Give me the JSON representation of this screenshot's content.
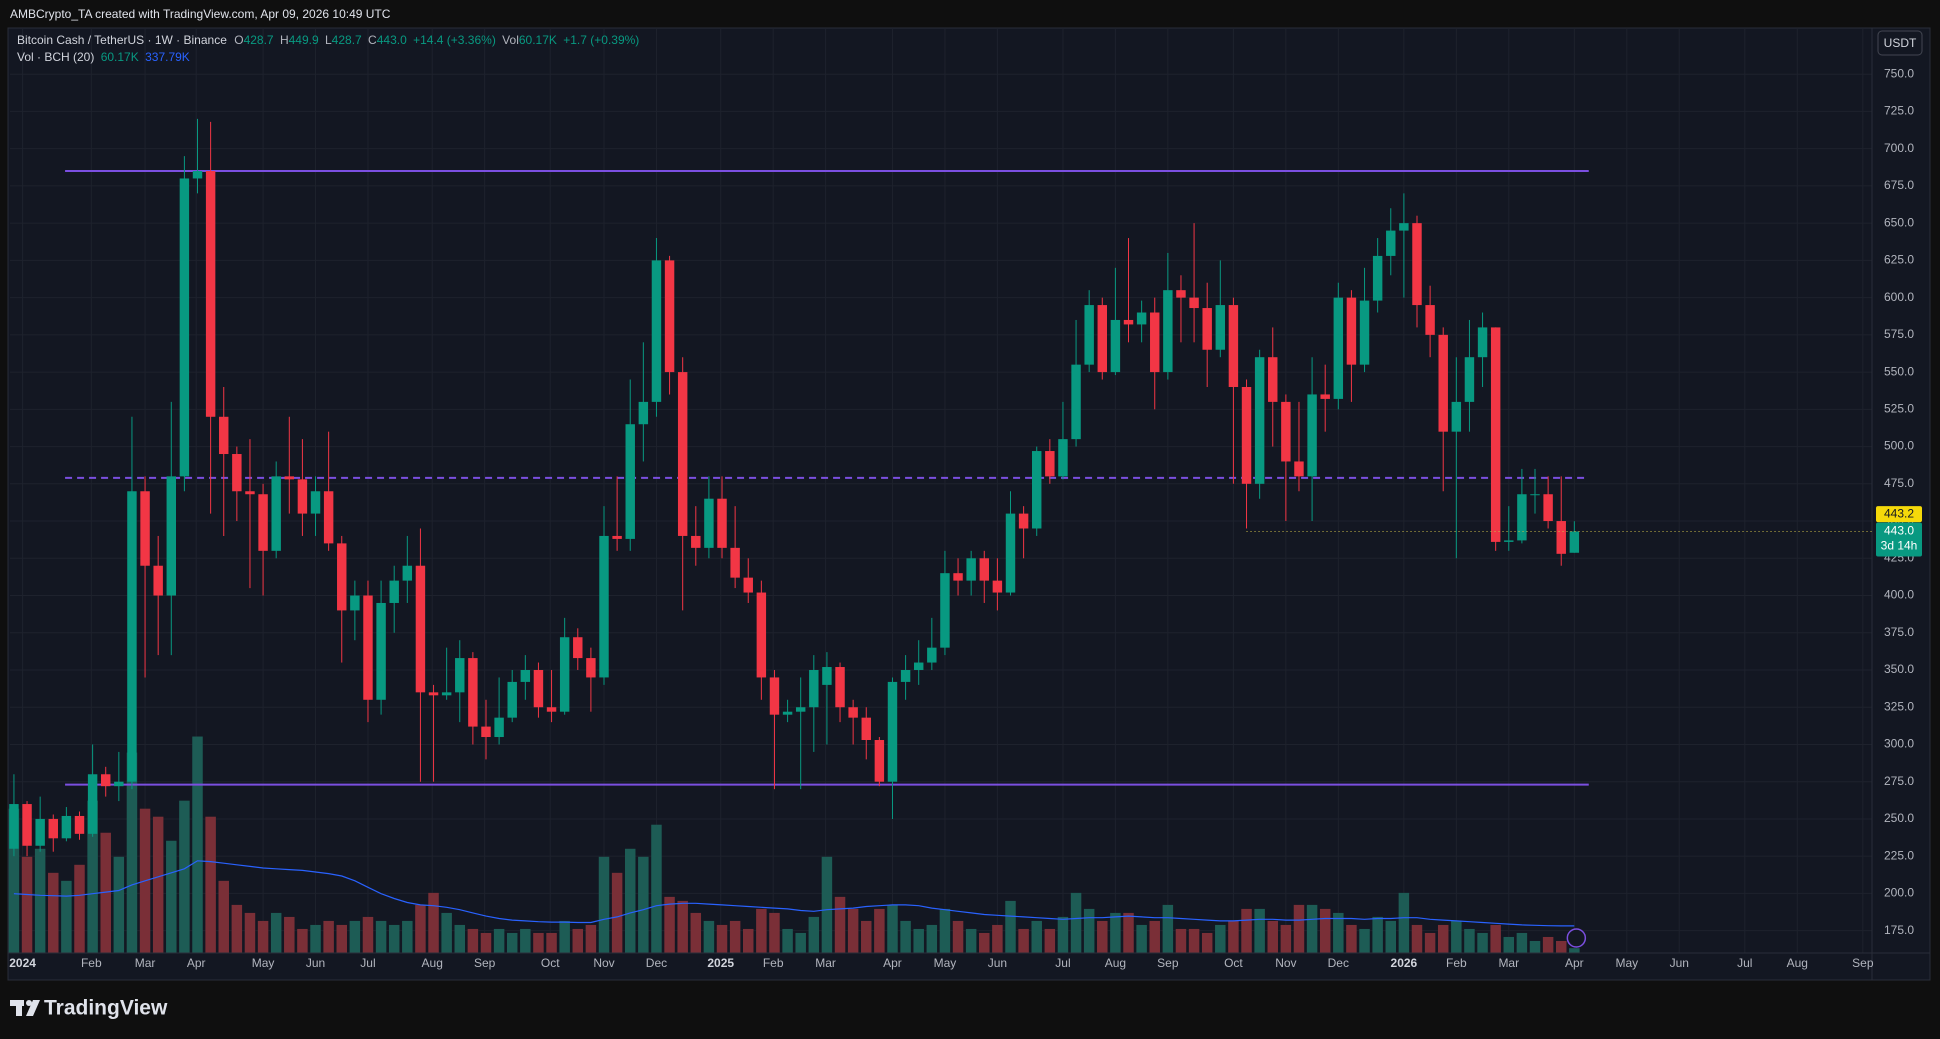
{
  "header": {
    "text": "AMBCrypto_TA created with TradingView.com, Apr 09, 2026 10:49 UTC"
  },
  "legend": {
    "symbol": "Bitcoin Cash / TetherUS · 1W · Binance",
    "o_label": "O",
    "o": "428.7",
    "h_label": "H",
    "h": "449.9",
    "l_label": "L",
    "l": "428.7",
    "c_label": "C",
    "c": "443.0",
    "change": "+14.4 (+3.36%)",
    "vol_label": "Vol",
    "vol": "60.17K",
    "vol_change": "+1.7 (+0.39%)",
    "indicator": "Vol · BCH (20)",
    "ind_vol": "60.17K",
    "ind_ma": "337.79K"
  },
  "currency": "USDT",
  "footer": "TradingView",
  "chart_data": {
    "type": "candlestick",
    "open": [
      230,
      260,
      232,
      250,
      237,
      252,
      240,
      280,
      272,
      275,
      470,
      420,
      400,
      480,
      680,
      685,
      520,
      495,
      470,
      468,
      430,
      480,
      478,
      455,
      470,
      435,
      390,
      400,
      330,
      395,
      410,
      420,
      335,
      333,
      335,
      358,
      312,
      305,
      318,
      342,
      350,
      325,
      322,
      372,
      358,
      345,
      440,
      438,
      515,
      530,
      625,
      550,
      440,
      432,
      465,
      432,
      412,
      402,
      345,
      320,
      322,
      325,
      340,
      352,
      325,
      318,
      303,
      275,
      342,
      350,
      355,
      365,
      415,
      410,
      425,
      410,
      402,
      455,
      445,
      497,
      480,
      505,
      555,
      595,
      550,
      585,
      582,
      590,
      550,
      605,
      600,
      593,
      565,
      595,
      540,
      475,
      560,
      530,
      490,
      480,
      535,
      532,
      600,
      555,
      598,
      628,
      645,
      650,
      595,
      575,
      510,
      530,
      560,
      580,
      436,
      437,
      468,
      468,
      450,
      428.7
    ],
    "high": [
      280,
      262,
      265,
      253,
      258,
      255,
      300,
      285,
      295,
      520,
      480,
      440,
      530,
      695,
      720,
      718,
      540,
      500,
      505,
      475,
      490,
      520,
      505,
      480,
      510,
      440,
      410,
      410,
      410,
      420,
      440,
      445,
      340,
      365,
      370,
      362,
      330,
      345,
      350,
      360,
      355,
      350,
      385,
      378,
      365,
      460,
      480,
      545,
      570,
      640,
      628,
      560,
      460,
      480,
      480,
      460,
      425,
      410,
      350,
      330,
      345,
      360,
      362,
      355,
      330,
      325,
      305,
      345,
      360,
      370,
      385,
      430,
      425,
      430,
      430,
      425,
      470,
      460,
      500,
      505,
      530,
      585,
      605,
      600,
      620,
      640,
      598,
      600,
      630,
      615,
      650,
      610,
      625,
      600,
      545,
      565,
      580,
      535,
      530,
      560,
      555,
      610,
      605,
      620,
      640,
      660,
      670,
      655,
      608,
      580,
      560,
      585,
      590,
      580,
      460,
      485,
      485,
      480,
      480,
      449.9
    ],
    "low": [
      225,
      225,
      228,
      228,
      235,
      236,
      238,
      265,
      262,
      270,
      345,
      360,
      360,
      470,
      670,
      455,
      440,
      450,
      405,
      400,
      425,
      455,
      440,
      440,
      430,
      355,
      370,
      315,
      320,
      375,
      395,
      275,
      275,
      330,
      315,
      300,
      290,
      300,
      315,
      330,
      318,
      315,
      320,
      350,
      322,
      340,
      430,
      430,
      490,
      520,
      535,
      390,
      420,
      425,
      425,
      405,
      395,
      330,
      270,
      315,
      270,
      295,
      300,
      315,
      300,
      290,
      272,
      250,
      330,
      340,
      350,
      360,
      400,
      400,
      395,
      390,
      400,
      425,
      440,
      475,
      478,
      500,
      550,
      545,
      548,
      570,
      570,
      525,
      545,
      570,
      570,
      540,
      560,
      475,
      445,
      465,
      500,
      450,
      470,
      450,
      510,
      525,
      530,
      550,
      590,
      615,
      600,
      580,
      560,
      470,
      425,
      510,
      540,
      430,
      430,
      435,
      455,
      445,
      420,
      428.7
    ],
    "close": [
      260,
      232,
      250,
      237,
      252,
      240,
      280,
      272,
      275,
      470,
      420,
      400,
      480,
      680,
      685,
      520,
      495,
      470,
      468,
      430,
      480,
      478,
      455,
      470,
      435,
      390,
      400,
      330,
      395,
      410,
      420,
      335,
      333,
      335,
      358,
      312,
      305,
      318,
      342,
      350,
      325,
      322,
      372,
      358,
      345,
      440,
      438,
      515,
      530,
      625,
      550,
      440,
      432,
      465,
      432,
      412,
      402,
      345,
      320,
      322,
      325,
      350,
      352,
      325,
      318,
      303,
      275,
      342,
      350,
      355,
      365,
      415,
      410,
      425,
      410,
      402,
      455,
      445,
      497,
      480,
      505,
      555,
      595,
      550,
      585,
      582,
      590,
      550,
      605,
      600,
      593,
      565,
      595,
      540,
      475,
      560,
      530,
      490,
      480,
      535,
      532,
      600,
      555,
      598,
      628,
      645,
      650,
      595,
      575,
      510,
      530,
      560,
      580,
      436,
      437,
      468,
      468,
      450,
      428,
      443.0
    ],
    "volume": [
      1800,
      1200,
      1300,
      1000,
      900,
      1100,
      1900,
      1500,
      1200,
      2500,
      1800,
      1700,
      1400,
      1900,
      2700,
      1700,
      900,
      600,
      500,
      400,
      500,
      450,
      300,
      350,
      400,
      350,
      400,
      450,
      400,
      350,
      400,
      600,
      750,
      500,
      350,
      300,
      250,
      300,
      250,
      300,
      250,
      250,
      400,
      300,
      350,
      1200,
      1000,
      1300,
      1200,
      1600,
      700,
      650,
      500,
      400,
      350,
      400,
      300,
      550,
      500,
      300,
      250,
      450,
      1200,
      700,
      550,
      400,
      550,
      600,
      400,
      300,
      350,
      550,
      400,
      300,
      250,
      350,
      650,
      300,
      400,
      300,
      450,
      750,
      550,
      400,
      500,
      500,
      350,
      400,
      600,
      300,
      300,
      250,
      350,
      400,
      550,
      550,
      400,
      350,
      600,
      600,
      550,
      500,
      350,
      300,
      450,
      400,
      750,
      350,
      250,
      350,
      400,
      300,
      250,
      350,
      200,
      250,
      150,
      200,
      150,
      60.17
    ],
    "vol_ma": [
      740,
      730,
      720,
      715,
      710,
      720,
      740,
      760,
      780,
      850,
      900,
      950,
      1000,
      1050,
      1150,
      1140,
      1120,
      1100,
      1080,
      1060,
      1050,
      1040,
      1030,
      1010,
      990,
      960,
      900,
      820,
      740,
      680,
      630,
      600,
      590,
      570,
      540,
      500,
      460,
      430,
      410,
      400,
      390,
      385,
      385,
      380,
      380,
      420,
      450,
      500,
      540,
      590,
      610,
      620,
      620,
      610,
      600,
      590,
      580,
      570,
      560,
      550,
      530,
      520,
      540,
      550,
      560,
      580,
      590,
      600,
      600,
      590,
      560,
      540,
      520,
      500,
      480,
      470,
      460,
      450,
      440,
      430,
      420,
      430,
      440,
      440,
      450,
      460,
      450,
      440,
      440,
      430,
      420,
      410,
      400,
      400,
      410,
      420,
      420,
      410,
      410,
      420,
      430,
      430,
      430,
      420,
      430,
      430,
      440,
      440,
      420,
      410,
      400,
      390,
      380,
      370,
      360,
      350,
      345,
      340,
      338,
      337.79
    ],
    "up_color": "#089981",
    "down_color": "#f23645",
    "vol_up_color": "#1d5c55",
    "vol_down_color": "#7a2f37",
    "ma_color": "#2962ff",
    "xlim": [
      -0.3,
      141.7
    ],
    "xticks": [
      {
        "value": 0.66,
        "label": "2024"
      },
      {
        "value": 5.9,
        "label": "Feb"
      },
      {
        "value": 10,
        "label": "Mar"
      },
      {
        "value": 13.9,
        "label": "Apr"
      },
      {
        "value": 19,
        "label": "May"
      },
      {
        "value": 23,
        "label": "Jun"
      },
      {
        "value": 27,
        "label": "Jul"
      },
      {
        "value": 31.9,
        "label": "Aug"
      },
      {
        "value": 35.9,
        "label": "Sep"
      },
      {
        "value": 40.9,
        "label": "Oct"
      },
      {
        "value": 45,
        "label": "Nov"
      },
      {
        "value": 49,
        "label": "Dec"
      },
      {
        "value": 53.9,
        "label": "2025"
      },
      {
        "value": 57.9,
        "label": "Feb"
      },
      {
        "value": 61.9,
        "label": "Mar"
      },
      {
        "value": 67,
        "label": "Apr"
      },
      {
        "value": 71,
        "label": "May"
      },
      {
        "value": 75,
        "label": "Jun"
      },
      {
        "value": 80,
        "label": "Jul"
      },
      {
        "value": 84,
        "label": "Aug"
      },
      {
        "value": 88,
        "label": "Sep"
      },
      {
        "value": 93,
        "label": "Oct"
      },
      {
        "value": 97,
        "label": "Nov"
      },
      {
        "value": 101,
        "label": "Dec"
      },
      {
        "value": 106,
        "label": "2026"
      },
      {
        "value": 110,
        "label": "Feb"
      },
      {
        "value": 114,
        "label": "Mar"
      },
      {
        "value": 119,
        "label": "Apr"
      },
      {
        "value": 123,
        "label": "May"
      },
      {
        "value": 127,
        "label": "Jun"
      },
      {
        "value": 132,
        "label": "Jul"
      },
      {
        "value": 136,
        "label": "Aug"
      },
      {
        "value": 141,
        "label": "Sep"
      }
    ],
    "ylim": [
      160,
      779
    ],
    "yticks": [
      {
        "value": 175,
        "label": "175.0"
      },
      {
        "value": 200,
        "label": "200.0"
      },
      {
        "value": 225,
        "label": "225.0"
      },
      {
        "value": 250,
        "label": "250.0"
      },
      {
        "value": 275,
        "label": "275.0"
      },
      {
        "value": 300,
        "label": "300.0"
      },
      {
        "value": 325,
        "label": "325.0"
      },
      {
        "value": 350,
        "label": "350.0"
      },
      {
        "value": 375,
        "label": "375.0"
      },
      {
        "value": 400,
        "label": "400.0"
      },
      {
        "value": 425,
        "label": "425.0"
      },
      {
        "value": 450,
        "label": "450.0"
      },
      {
        "value": 475,
        "label": "475.0"
      },
      {
        "value": 500,
        "label": "500.0"
      },
      {
        "value": 525,
        "label": "525.0"
      },
      {
        "value": 550,
        "label": "550.0"
      },
      {
        "value": 575,
        "label": "575.0"
      },
      {
        "value": 600,
        "label": "600.0"
      },
      {
        "value": 625,
        "label": "625.0"
      },
      {
        "value": 650,
        "label": "650.0"
      },
      {
        "value": 675,
        "label": "675.0"
      },
      {
        "value": 700,
        "label": "700.0"
      },
      {
        "value": 725,
        "label": "725.0"
      },
      {
        "value": 750,
        "label": "750.0"
      }
    ],
    "vlim": [
      0,
      11500
    ],
    "grid": true,
    "levels": [
      {
        "value": 685,
        "style": "solid",
        "from": 3.9,
        "to": 120.1,
        "color": "#7b4fe0"
      },
      {
        "value": 273,
        "style": "solid",
        "from": 3.9,
        "to": 120.1,
        "color": "#7b4fe0"
      },
      {
        "value": 479,
        "style": "dashed",
        "from": 3.9,
        "to": 120.1,
        "color": "#7b4fe0"
      }
    ],
    "last_price": {
      "value": 443.0,
      "label": "443.0",
      "countdown": "3d 14h",
      "from": 94,
      "color": "#089981"
    },
    "marker": {
      "value": 443.2,
      "label": "443.2",
      "color": "#f5d90a"
    }
  }
}
